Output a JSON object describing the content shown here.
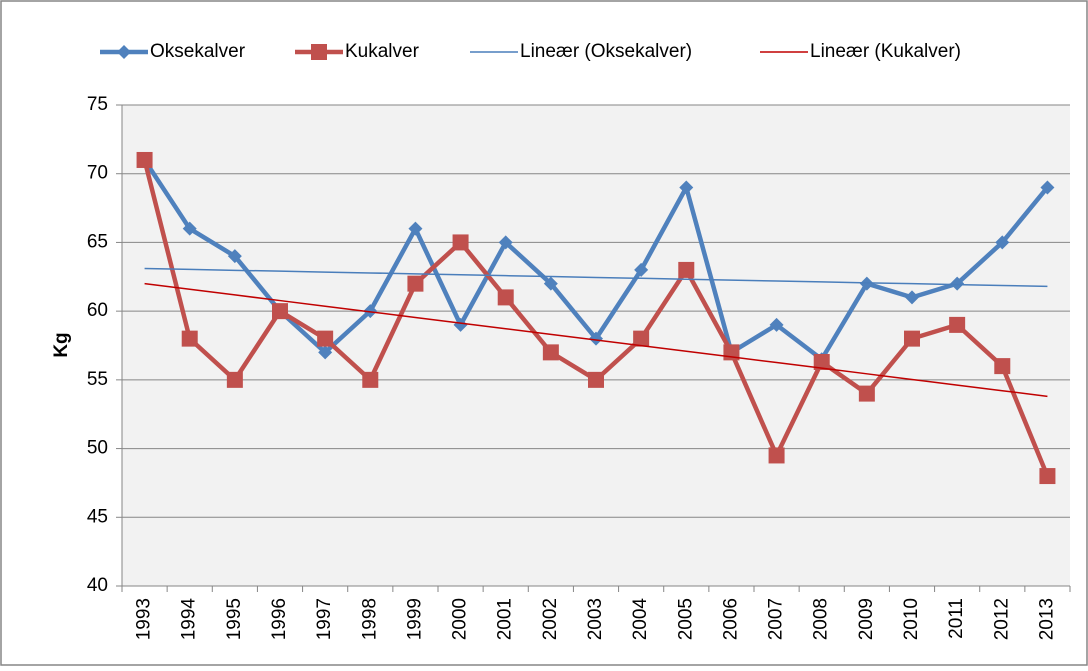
{
  "chart_data": {
    "type": "line",
    "y_label": "Kg",
    "categories": [
      "1993",
      "1994",
      "1995",
      "1996",
      "1997",
      "1998",
      "1999",
      "2000",
      "2001",
      "2002",
      "2003",
      "2004",
      "2005",
      "2006",
      "2007",
      "2008",
      "2009",
      "2010",
      "2011",
      "2012",
      "2013"
    ],
    "series": [
      {
        "name": "Oksekalver",
        "color": "#4f81bd",
        "marker": "diamond",
        "values": [
          71,
          66,
          64,
          60,
          57,
          60,
          66,
          59,
          65,
          62,
          58,
          63,
          69,
          57,
          59,
          56.5,
          62,
          61,
          62,
          65,
          69
        ]
      },
      {
        "name": "Kukalver",
        "color": "#c0504d",
        "marker": "square",
        "values": [
          71,
          58,
          55,
          60,
          58,
          55,
          62,
          65,
          61,
          57,
          55,
          58,
          63,
          57,
          49.5,
          56.3,
          54,
          58,
          59,
          56,
          48
        ]
      },
      {
        "name": "Lineær (Oksekalver)",
        "color": "#4a7ebb",
        "values": [
          63.1,
          63.04,
          62.97,
          62.91,
          62.84,
          62.78,
          62.71,
          62.65,
          62.58,
          62.52,
          62.45,
          62.39,
          62.32,
          62.26,
          62.19,
          62.13,
          62.06,
          62.0,
          61.93,
          61.87,
          61.8
        ]
      },
      {
        "name": "Lineær (Kukalver)",
        "color": "#c00000",
        "values": [
          62.0,
          61.59,
          61.18,
          60.77,
          60.36,
          59.95,
          59.54,
          59.13,
          58.72,
          58.31,
          57.9,
          57.49,
          57.08,
          56.67,
          56.26,
          55.85,
          55.44,
          55.03,
          54.62,
          54.21,
          53.8
        ]
      }
    ],
    "ylim": [
      40,
      75
    ],
    "yticks": [
      40,
      45,
      50,
      55,
      60,
      65,
      70,
      75
    ],
    "grid": true
  }
}
